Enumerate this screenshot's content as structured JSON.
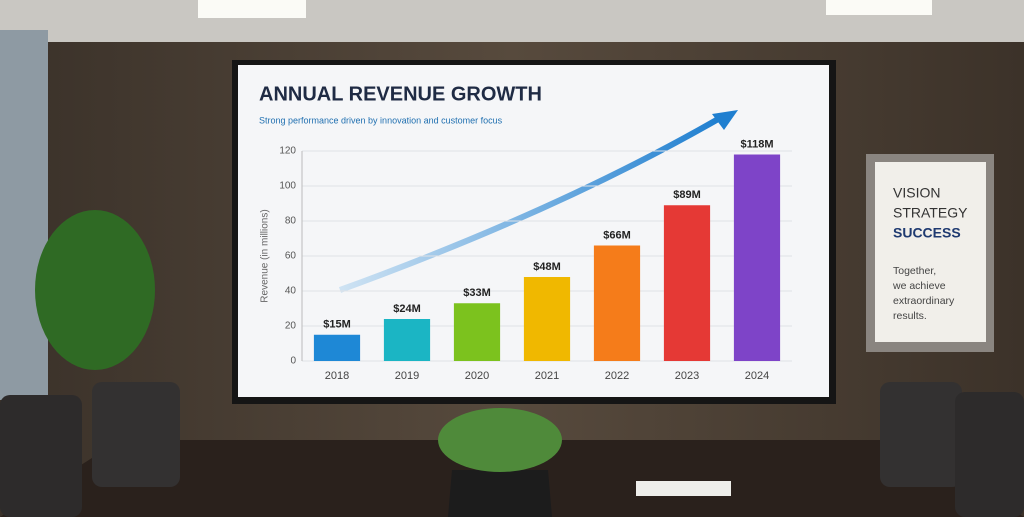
{
  "chart_data": {
    "type": "bar",
    "title": "ANNUAL REVENUE GROWTH",
    "subtitle": "Strong performance driven by innovation and customer focus",
    "ylabel": "Revenue (in millions)",
    "categories": [
      "2018",
      "2019",
      "2020",
      "2021",
      "2022",
      "2023",
      "2024"
    ],
    "values": [
      15,
      24,
      33,
      48,
      66,
      89,
      118
    ],
    "value_labels": [
      "$15M",
      "$24M",
      "$33M",
      "$48M",
      "$66M",
      "$89M",
      "$118M"
    ],
    "colors": [
      "#1e88d6",
      "#1bb5c4",
      "#7cc21e",
      "#f0b800",
      "#f57c1a",
      "#e53935",
      "#7e44c8"
    ],
    "ylim": [
      0,
      120
    ],
    "yticks": [
      0,
      20,
      40,
      60,
      80,
      100,
      120
    ],
    "grid": true
  },
  "poster": {
    "lines": [
      "VISION",
      "STRATEGY",
      "SUCCESS"
    ],
    "body": [
      "Together,",
      "we achieve",
      "extraordinary",
      "results."
    ]
  }
}
